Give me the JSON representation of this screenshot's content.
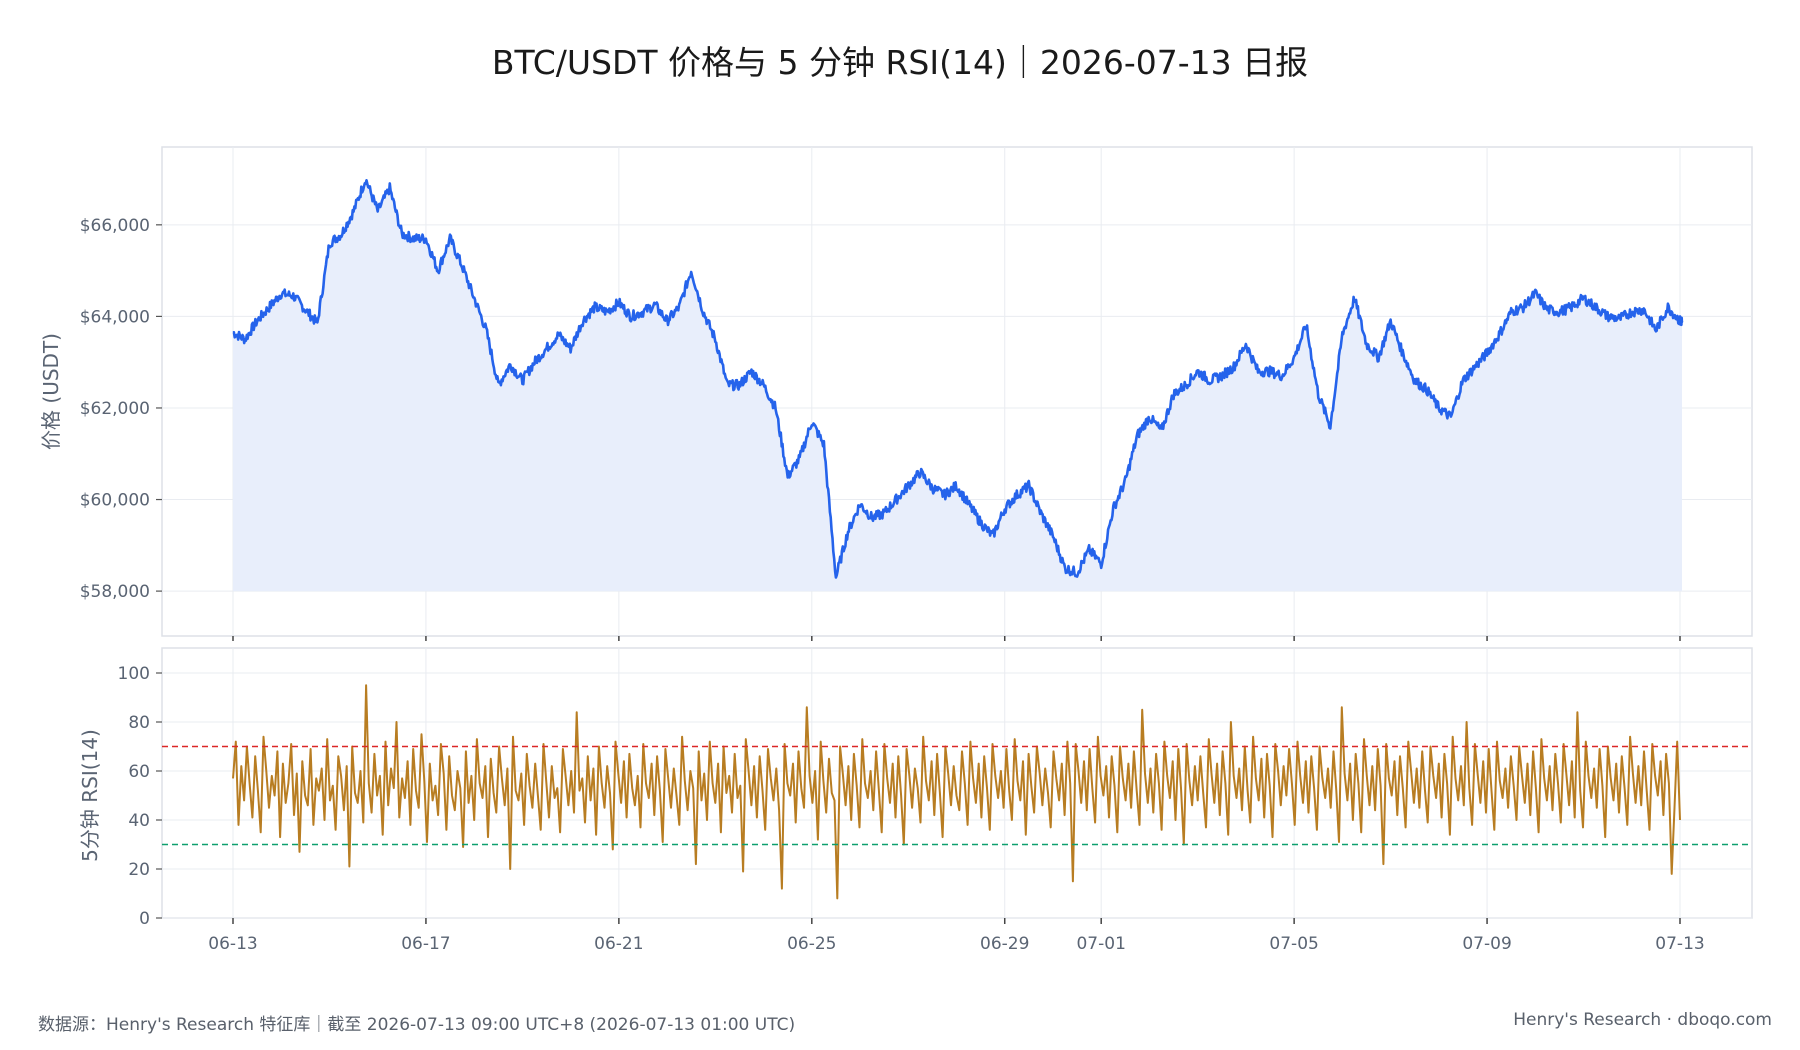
{
  "title": "BTC/USDT 价格与 5 分钟 RSI(14)｜2026-07-13 日报",
  "footer": {
    "left": "数据源：Henry's Research 特征库｜截至 2026-07-13 09:00 UTC+8 (2026-07-13 01:00 UTC)",
    "right": "Henry's Research · dboqo.com"
  },
  "colors": {
    "price_line": "#2563eb",
    "price_fill": "#e8eefb",
    "rsi_line": "#b87d22",
    "overbought": "#dc2626",
    "oversold": "#0e9f6e",
    "grid": "#e9ecf1",
    "frame": "#dde1e7"
  },
  "chart_data": [
    {
      "type": "area",
      "panel": "price",
      "ylabel": "价格 (USDT)",
      "ylim": [
        57500,
        67700
      ],
      "yticks": [
        58000,
        60000,
        62000,
        64000,
        66000
      ],
      "ytick_labels": [
        "$58,000",
        "$60,000",
        "$62,000",
        "$64,000",
        "$66,000"
      ],
      "x_range": [
        "2026-06-13",
        "2026-07-13 01:00"
      ],
      "grid": true,
      "series": [
        {
          "x": [
            "06-13 00:00",
            "06-13 06:00",
            "06-13 12:00",
            "06-13 18:00",
            "06-14 00:00",
            "06-14 06:00",
            "06-14 12:00",
            "06-14 18:00",
            "06-15 00:00",
            "06-15 06:00",
            "06-15 12:00",
            "06-15 18:00",
            "06-16 00:00",
            "06-16 06:00",
            "06-16 12:00",
            "06-16 18:00",
            "06-17 00:00",
            "06-17 06:00",
            "06-17 12:00",
            "06-17 18:00",
            "06-18 00:00",
            "06-18 06:00",
            "06-18 12:00",
            "06-18 18:00",
            "06-19 00:00",
            "06-19 06:00",
            "06-19 12:00",
            "06-19 18:00",
            "06-20 00:00",
            "06-20 06:00",
            "06-20 12:00",
            "06-20 18:00",
            "06-21 00:00",
            "06-21 06:00",
            "06-21 12:00",
            "06-21 18:00",
            "06-22 00:00",
            "06-22 06:00",
            "06-22 12:00",
            "06-22 18:00",
            "06-23 00:00",
            "06-23 06:00",
            "06-23 12:00",
            "06-23 18:00",
            "06-24 00:00",
            "06-24 06:00",
            "06-24 12:00",
            "06-24 18:00",
            "06-25 00:00",
            "06-25 06:00",
            "06-25 12:00",
            "06-25 18:00",
            "06-26 00:00",
            "06-26 06:00",
            "06-26 12:00",
            "06-26 18:00",
            "06-27 00:00",
            "06-27 06:00",
            "06-27 12:00",
            "06-27 18:00",
            "06-28 00:00",
            "06-28 06:00",
            "06-28 12:00",
            "06-28 18:00",
            "06-29 00:00",
            "06-29 06:00",
            "06-29 12:00",
            "06-29 18:00",
            "06-30 00:00",
            "06-30 06:00",
            "06-30 12:00",
            "06-30 18:00",
            "07-01 00:00",
            "07-01 06:00",
            "07-01 12:00",
            "07-01 18:00",
            "07-02 00:00",
            "07-02 06:00",
            "07-02 12:00",
            "07-02 18:00",
            "07-03 00:00",
            "07-03 06:00",
            "07-03 12:00",
            "07-03 18:00",
            "07-04 00:00",
            "07-04 06:00",
            "07-04 12:00",
            "07-04 18:00",
            "07-05 00:00",
            "07-05 06:00",
            "07-05 12:00",
            "07-05 18:00",
            "07-06 00:00",
            "07-06 06:00",
            "07-06 12:00",
            "07-06 18:00",
            "07-07 00:00",
            "07-07 06:00",
            "07-07 12:00",
            "07-07 18:00",
            "07-08 00:00",
            "07-08 06:00",
            "07-08 12:00",
            "07-08 18:00",
            "07-09 00:00",
            "07-09 06:00",
            "07-09 12:00",
            "07-09 18:00",
            "07-10 00:00",
            "07-10 06:00",
            "07-10 12:00",
            "07-10 18:00",
            "07-11 00:00",
            "07-11 06:00",
            "07-11 12:00",
            "07-11 18:00",
            "07-12 00:00",
            "07-12 06:00",
            "07-12 12:00",
            "07-12 18:00",
            "07-13 00:00",
            "07-13 01:00"
          ],
          "y": [
            63650,
            63500,
            63900,
            64200,
            64500,
            64450,
            64150,
            63850,
            65600,
            65800,
            66300,
            67000,
            66300,
            66800,
            65800,
            65700,
            65700,
            65000,
            65700,
            65100,
            64400,
            63700,
            62500,
            62950,
            62600,
            63000,
            63300,
            63600,
            63300,
            63900,
            64200,
            64100,
            64300,
            64000,
            64100,
            64250,
            63900,
            64200,
            65000,
            64100,
            63500,
            62500,
            62500,
            62800,
            62500,
            62000,
            60500,
            60900,
            61700,
            61200,
            58300,
            59300,
            59900,
            59600,
            59700,
            60000,
            60300,
            60600,
            60250,
            60100,
            60300,
            59900,
            59500,
            59200,
            59800,
            60100,
            60300,
            59700,
            59200,
            58500,
            58400,
            58900,
            58600,
            59800,
            60400,
            61400,
            61800,
            61500,
            62300,
            62500,
            62800,
            62600,
            62700,
            62900,
            63400,
            62800,
            62800,
            62700,
            63100,
            63800,
            62300,
            61600,
            63600,
            64400,
            63400,
            63100,
            63900,
            63200,
            62600,
            62400,
            62000,
            61800,
            62600,
            62900,
            63200,
            63600,
            64100,
            64200,
            64500,
            64150,
            64100,
            64200,
            64400,
            64200,
            64000,
            63950,
            64100,
            64150,
            63700,
            64200,
            63900,
            63900
          ]
        }
      ]
    },
    {
      "type": "line",
      "panel": "rsi",
      "ylabel": "5分钟 RSI(14)",
      "ylim": [
        0,
        100
      ],
      "yticks": [
        0,
        20,
        40,
        60,
        80,
        100
      ],
      "ytick_labels": [
        "0",
        "20",
        "40",
        "60",
        "80",
        "100"
      ],
      "xticks": [
        "06-13",
        "06-17",
        "06-21",
        "06-25",
        "06-29",
        "07-01",
        "07-05",
        "07-09",
        "07-13"
      ],
      "reference_lines": [
        {
          "value": 70,
          "style": "dashed",
          "color": "#dc2626"
        },
        {
          "value": 30,
          "style": "dashed",
          "color": "#0e9f6e"
        }
      ],
      "grid": true,
      "series": [
        {
          "x_range": [
            "2026-06-13",
            "2026-07-13 01:00"
          ],
          "y": [
            57,
            72,
            38,
            62,
            48,
            70,
            55,
            41,
            66,
            52,
            35,
            74,
            60,
            45,
            58,
            50,
            68,
            33,
            63,
            47,
            55,
            71,
            42,
            59,
            27,
            64,
            50,
            46,
            69,
            38,
            57,
            52,
            61,
            40,
            73,
            48,
            54,
            36,
            66,
            58,
            44,
            62,
            21,
            70,
            51,
            47,
            60,
            39,
            95,
            55,
            43,
            67,
            50,
            58,
            34,
            72,
            46,
            61,
            53,
            80,
            41,
            57,
            49,
            64,
            38,
            69,
            52,
            45,
            75,
            56,
            31,
            63,
            48,
            54,
            42,
            71,
            59,
            36,
            66,
            50,
            44,
            60,
            53,
            29,
            68,
            47,
            58,
            40,
            73,
            55,
            49,
            62,
            33,
            65,
            51,
            43,
            70,
            57,
            46,
            61,
            20,
            74,
            52,
            48,
            59,
            38,
            67,
            54,
            45,
            63,
            50,
            36,
            71,
            56,
            41,
            62,
            49,
            53,
            35,
            69,
            58,
            46,
            60,
            43,
            84,
            52,
            57,
            39,
            66,
            48,
            61,
            34,
            70,
            55,
            45,
            62,
            51,
            28,
            72,
            59,
            47,
            64,
            41,
            67,
            53,
            46,
            58,
            37,
            71,
            55,
            49,
            63,
            42,
            66,
            52,
            31,
            69,
            57,
            45,
            61,
            50,
            38,
            74,
            56,
            44,
            60,
            53,
            22,
            68,
            48,
            59,
            40,
            72,
            55,
            47,
            63,
            35,
            70,
            51,
            58,
            43,
            67,
            49,
            54,
            19,
            73,
            60,
            46,
            62,
            41,
            66,
            52,
            36,
            69,
            57,
            48,
            61,
            44,
            12,
            71,
            55,
            50,
            63,
            39,
            68,
            53,
            45,
            86,
            58,
            47,
            60,
            32,
            72,
            56,
            43,
            65,
            51,
            48,
            8,
            70,
            59,
            46,
            62,
            40,
            67,
            54,
            37,
            73,
            55,
            49,
            60,
            44,
            68,
            52,
            35,
            71,
            57,
            47,
            63,
            41,
            66,
            50,
            30,
            69,
            58,
            45,
            61,
            53,
            39,
            74,
            56,
            48,
            64,
            42,
            67,
            51,
            33,
            70,
            59,
            46,
            62,
            50,
            44,
            68,
            55,
            38,
            72,
            57,
            47,
            63,
            41,
            66,
            53,
            36,
            71,
            58,
            49,
            60,
            45,
            69,
            52,
            40,
            73,
            56,
            48,
            64,
            34,
            67,
            54,
            43,
            70,
            59,
            46,
            61,
            51,
            37,
            68,
            57,
            48,
            63,
            42,
            72,
            55,
            15,
            71,
            60,
            47,
            64,
            44,
            69,
            53,
            39,
            74,
            58,
            50,
            62,
            41,
            66,
            54,
            35,
            70,
            57,
            48,
            63,
            45,
            68,
            52,
            38,
            85,
            59,
            47,
            61,
            43,
            67,
            55,
            36,
            72,
            58,
            49,
            64,
            40,
            69,
            53,
            30,
            71,
            56,
            46,
            62,
            48,
            66,
            51,
            37,
            73,
            59,
            47,
            63,
            42,
            68,
            55,
            34,
            80,
            58,
            49,
            61,
            44,
            70,
            52,
            39,
            74,
            57,
            48,
            65,
            41,
            67,
            54,
            33,
            71,
            60,
            46,
            62,
            50,
            69,
            55,
            38,
            72,
            58,
            47,
            64,
            43,
            66,
            53,
            36,
            70,
            57,
            49,
            61,
            45,
            68,
            52,
            31,
            86,
            59,
            48,
            63,
            40,
            67,
            55,
            35,
            73,
            58,
            46,
            62,
            44,
            69,
            54,
            22,
            71,
            57,
            50,
            64,
            42,
            66,
            53,
            37,
            72,
            60,
            47,
            61,
            45,
            68,
            52,
            39,
            70,
            58,
            49,
            63,
            41,
            67,
            55,
            34,
            74,
            57,
            48,
            62,
            46,
            80,
            53,
            38,
            71,
            59,
            47,
            64,
            43,
            69,
            52,
            36,
            72,
            56,
            49,
            61,
            45,
            66,
            54,
            40,
            70,
            58,
            47,
            63,
            42,
            68,
            53,
            35,
            73,
            57,
            48,
            62,
            44,
            67,
            55,
            39,
            71,
            59,
            46,
            64,
            41,
            84,
            52,
            37,
            72,
            58,
            49,
            61,
            45,
            69,
            54,
            33,
            70,
            57,
            48,
            63,
            43,
            66,
            53,
            38,
            74,
            59,
            47,
            62,
            46,
            68,
            52,
            36,
            71,
            58,
            50,
            64,
            42,
            67,
            55,
            18,
            45,
            72,
            40
          ]
        }
      ]
    }
  ]
}
